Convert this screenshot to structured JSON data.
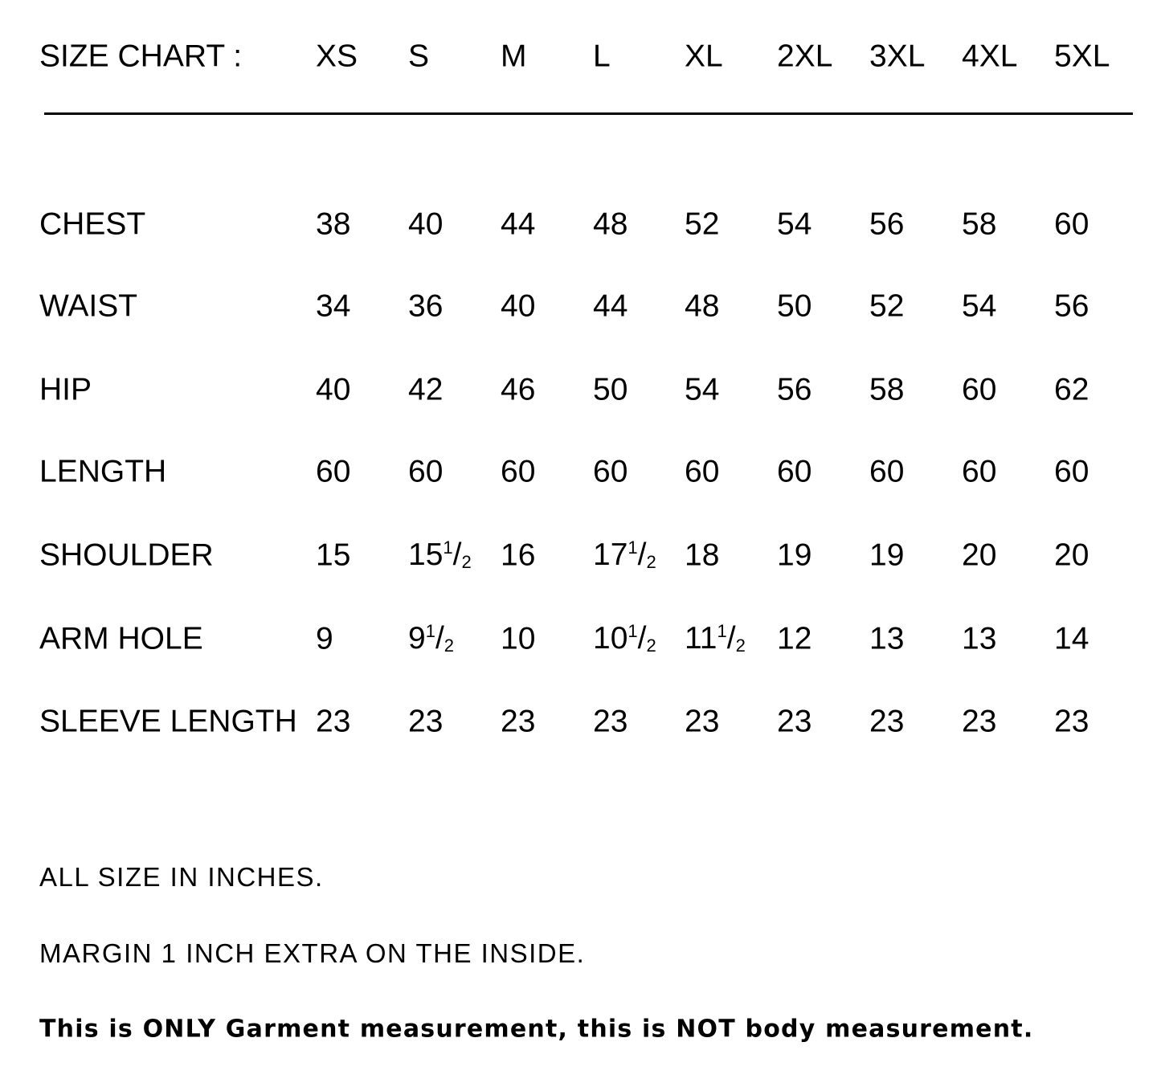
{
  "header": {
    "title": "SIZE CHART :",
    "sizes": [
      "XS",
      "S",
      "M",
      "L",
      "XL",
      "2XL",
      "3XL",
      "4XL",
      "5XL"
    ]
  },
  "rows": [
    {
      "label": "CHEST",
      "values": [
        "38",
        "40",
        "44",
        "48",
        "52",
        "54",
        "56",
        "58",
        "60"
      ]
    },
    {
      "label": "WAIST",
      "values": [
        "34",
        "36",
        "40",
        "44",
        "48",
        "50",
        "52",
        "54",
        "56"
      ]
    },
    {
      "label": "HIP",
      "values": [
        "40",
        "42",
        "46",
        "50",
        "54",
        "56",
        "58",
        "60",
        "62"
      ]
    },
    {
      "label": "LENGTH",
      "values": [
        "60",
        "60",
        "60",
        "60",
        "60",
        "60",
        "60",
        "60",
        "60"
      ]
    },
    {
      "label": "SHOULDER",
      "values": [
        "15",
        "15 1/2",
        "16",
        "17 1/2",
        "18",
        "19",
        "19",
        "20",
        "20"
      ]
    },
    {
      "label": "ARM HOLE",
      "values": [
        "9",
        "9 1/2",
        "10",
        "10 1/2",
        "11 1/2",
        "12",
        "13",
        "13",
        "14"
      ]
    },
    {
      "label": "SLEEVE LENGTH",
      "values": [
        "23",
        "23",
        "23",
        "23",
        "23",
        "23",
        "23",
        "23",
        "23"
      ]
    }
  ],
  "notes": {
    "units": "ALL SIZE IN INCHES.",
    "margin": "MARGIN 1 INCH EXTRA ON THE INSIDE.",
    "disclaimer": "This is ONLY Garment measurement, this is NOT body measurement."
  }
}
